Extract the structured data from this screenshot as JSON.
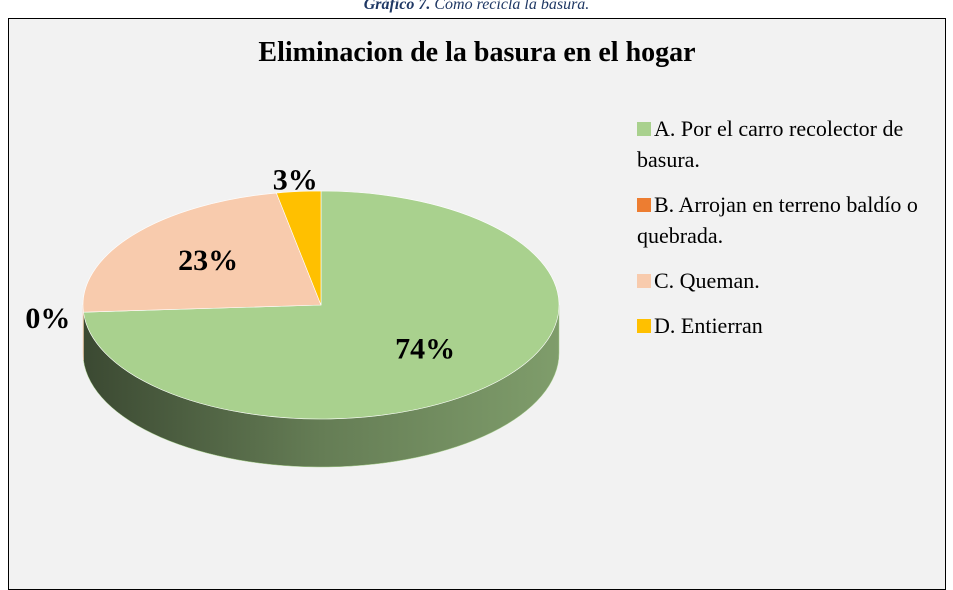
{
  "caption": {
    "number": "Gráfico 7.",
    "text": "Cómo recicla la basura."
  },
  "chart_data": {
    "type": "pie",
    "title": "Eliminacion de la basura en el hogar",
    "categories": [
      "A. Por el carro recolector de basura.",
      "B. Arrojan en terreno baldío o quebrada.",
      "C. Queman.",
      "D. Entierran"
    ],
    "values": [
      74,
      0,
      23,
      3
    ],
    "value_labels": [
      "74%",
      "0%",
      "23%",
      "3%"
    ],
    "colors": [
      "#a9d18e",
      "#ed7d31",
      "#f8cbad",
      "#ffc000"
    ],
    "legend": "right"
  }
}
